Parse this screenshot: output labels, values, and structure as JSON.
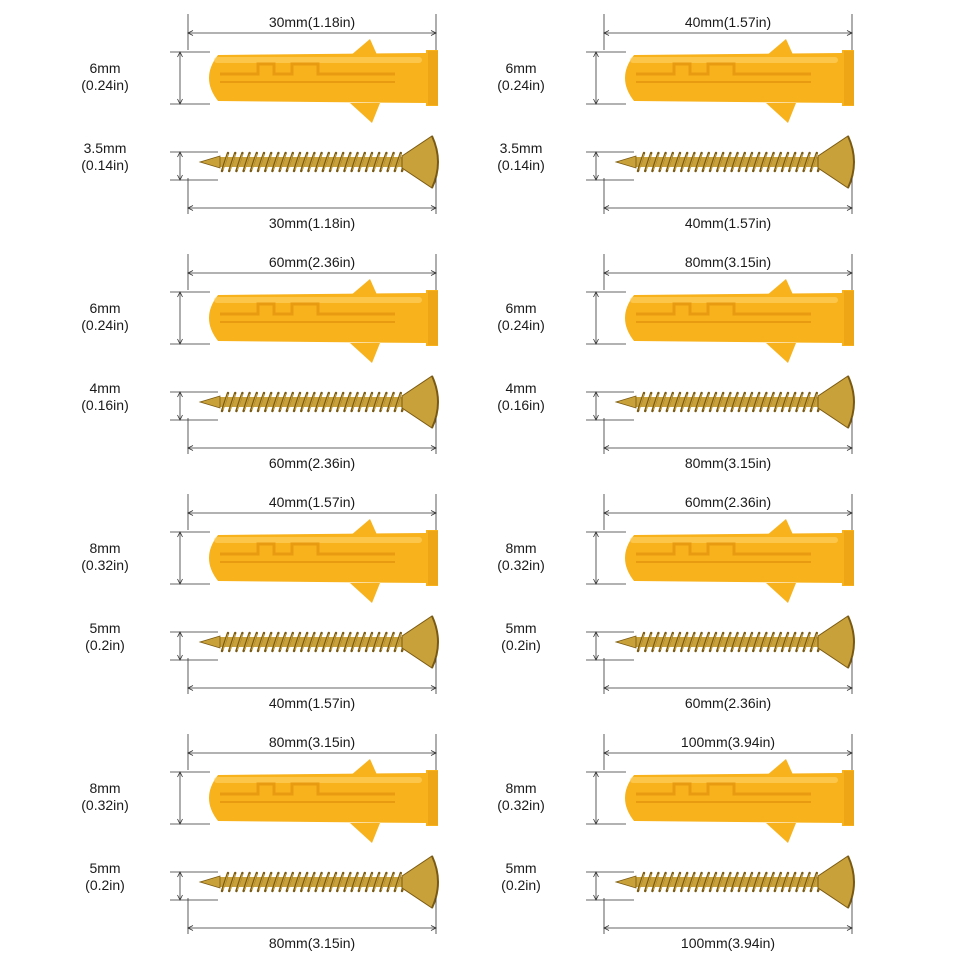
{
  "colors": {
    "anchor_body": "#f7b21c",
    "anchor_shade": "#e89a10",
    "anchor_highlight": "#ffd46a",
    "screw_metal": "#c9a13a",
    "screw_dark": "#7a5a12",
    "dim_line": "#333333"
  },
  "items": [
    {
      "anchor_length": "30mm(1.18in)",
      "anchor_dia_mm": "6mm",
      "anchor_dia_in": "(0.24in)",
      "screw_dia_mm": "3.5mm",
      "screw_dia_in": "(0.14in)",
      "screw_length": "30mm(1.18in)"
    },
    {
      "anchor_length": "40mm(1.57in)",
      "anchor_dia_mm": "6mm",
      "anchor_dia_in": "(0.24in)",
      "screw_dia_mm": "3.5mm",
      "screw_dia_in": "(0.14in)",
      "screw_length": "40mm(1.57in)"
    },
    {
      "anchor_length": "60mm(2.36in)",
      "anchor_dia_mm": "6mm",
      "anchor_dia_in": "(0.24in)",
      "screw_dia_mm": "4mm",
      "screw_dia_in": "(0.16in)",
      "screw_length": "60mm(2.36in)"
    },
    {
      "anchor_length": "80mm(3.15in)",
      "anchor_dia_mm": "6mm",
      "anchor_dia_in": "(0.24in)",
      "screw_dia_mm": "4mm",
      "screw_dia_in": "(0.16in)",
      "screw_length": "80mm(3.15in)"
    },
    {
      "anchor_length": "40mm(1.57in)",
      "anchor_dia_mm": "8mm",
      "anchor_dia_in": "(0.32in)",
      "screw_dia_mm": "5mm",
      "screw_dia_in": "(0.2in)",
      "screw_length": "40mm(1.57in)"
    },
    {
      "anchor_length": "60mm(2.36in)",
      "anchor_dia_mm": "8mm",
      "anchor_dia_in": "(0.32in)",
      "screw_dia_mm": "5mm",
      "screw_dia_in": "(0.2in)",
      "screw_length": "60mm(2.36in)"
    },
    {
      "anchor_length": "80mm(3.15in)",
      "anchor_dia_mm": "8mm",
      "anchor_dia_in": "(0.32in)",
      "screw_dia_mm": "5mm",
      "screw_dia_in": "(0.2in)",
      "screw_length": "80mm(3.15in)"
    },
    {
      "anchor_length": "100mm(3.94in)",
      "anchor_dia_mm": "8mm",
      "anchor_dia_in": "(0.32in)",
      "screw_dia_mm": "5mm",
      "screw_dia_in": "(0.2in)",
      "screw_length": "100mm(3.94in)"
    }
  ]
}
